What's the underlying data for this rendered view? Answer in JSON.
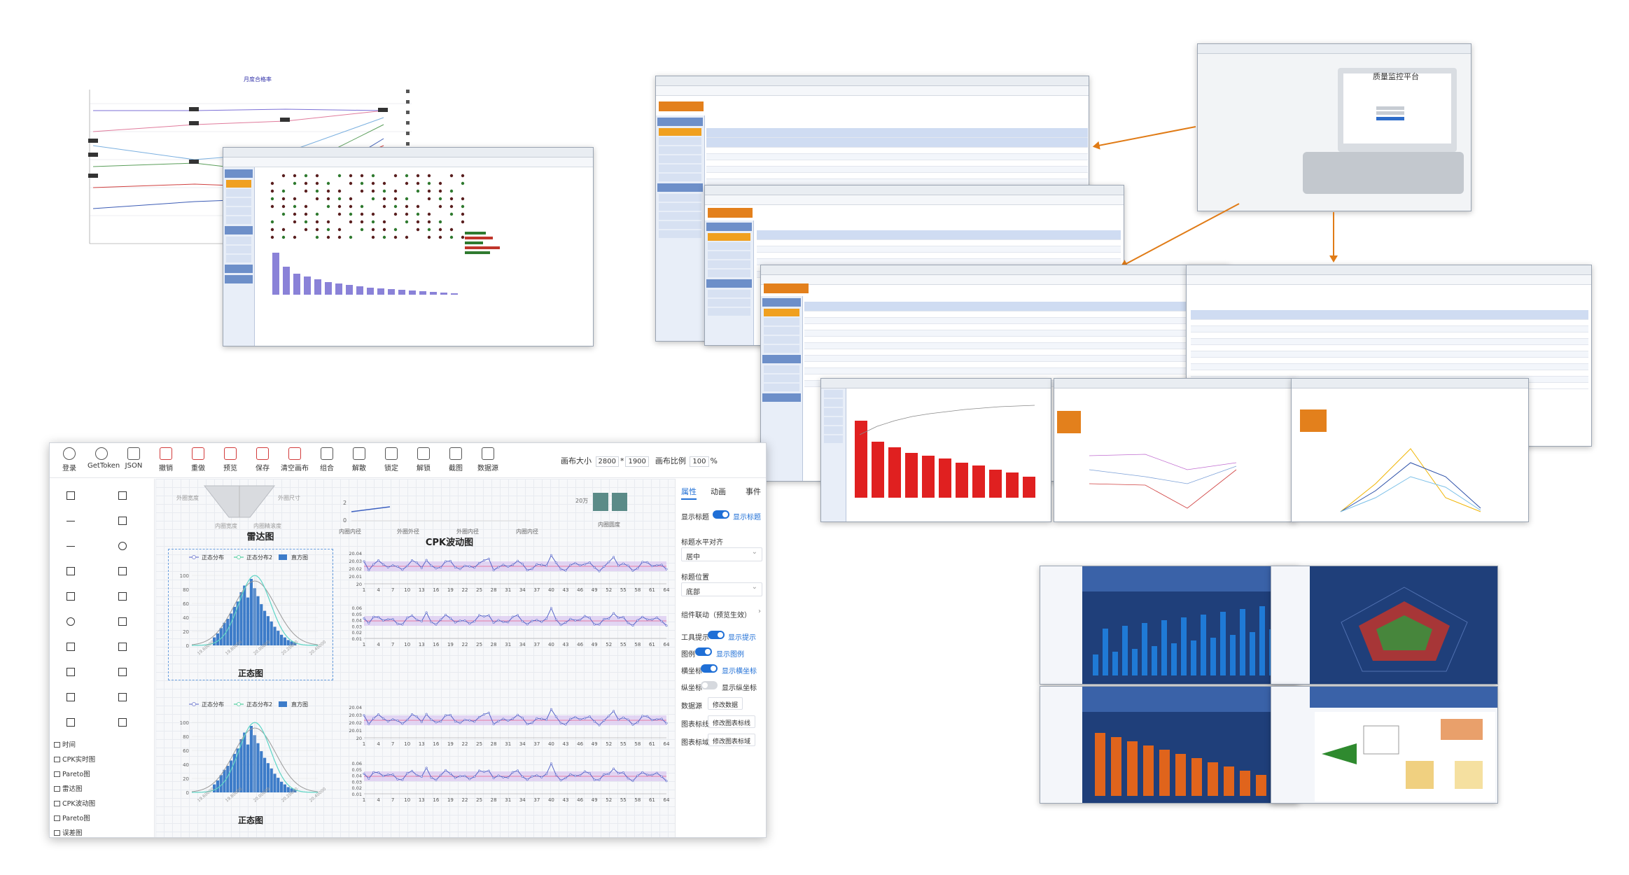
{
  "brand_colors": {
    "accent_orange": "#e07b16",
    "blue_primary": "#1f6fd6",
    "chart_blue": "#3d7cc9"
  },
  "login_screen": {
    "title": "质量监控平台"
  },
  "designer": {
    "toolbar": {
      "buttons": [
        {
          "label": "登录",
          "icon": "user-icon"
        },
        {
          "label": "GetToken",
          "icon": "token-icon"
        },
        {
          "label": "JSON",
          "icon": "json-icon"
        },
        {
          "label": "撤销",
          "icon": "undo-icon"
        },
        {
          "label": "重做",
          "icon": "redo-icon"
        },
        {
          "label": "预览",
          "icon": "preview-icon"
        },
        {
          "label": "保存",
          "icon": "save-icon"
        },
        {
          "label": "清空画布",
          "icon": "clear-icon"
        },
        {
          "label": "组合",
          "icon": "group-icon"
        },
        {
          "label": "解散",
          "icon": "ungroup-icon"
        },
        {
          "label": "锁定",
          "icon": "lock-icon"
        },
        {
          "label": "解锁",
          "icon": "unlock-icon"
        },
        {
          "label": "截图",
          "icon": "screenshot-icon"
        },
        {
          "label": "数据源",
          "icon": "database-icon"
        }
      ],
      "canvas_size_label": "画布大小",
      "canvas_width": "2800",
      "canvas_sep": "*",
      "canvas_height": "1900",
      "canvas_ratio_label": "画布比例",
      "canvas_ratio": "100",
      "canvas_ratio_unit": "%"
    },
    "component_list": [
      "时间",
      "CPK实时图",
      "Pareto图",
      "雷达图",
      "CPK波动图",
      "Pareto图",
      "误差图"
    ],
    "stage": {
      "radar_labels": [
        "外圈宽度",
        "外圈尺寸",
        "内圈宽度",
        "内圈精滚度"
      ],
      "line_labels": [
        "内圈内径",
        "外圈外径",
        "外圈内径",
        "内圈内径"
      ],
      "bar_value_label": "20万",
      "bar_label": "内圈圆度",
      "radar_title": "雷达图",
      "cpk_title": "CPK波动图",
      "normal_title": "正态图",
      "legend": [
        "正态分布",
        "正态分布2",
        "直方图"
      ],
      "line_axis_zero": "0",
      "line_axis_two": "2"
    },
    "properties": {
      "tabs": [
        "属性",
        "动画",
        "事件"
      ],
      "show_title_label": "显示标题",
      "show_title_value": "显示标题",
      "title_align_label": "标题水平对齐",
      "title_align_value": "居中",
      "title_pos_label": "标题位置",
      "title_pos_value": "底部",
      "linkage_label": "组件联动（预览生效）",
      "tooltip_label": "工具提示",
      "tooltip_value": "显示提示",
      "legend_label": "图例",
      "legend_value": "显示图例",
      "xaxis_label": "横坐标",
      "xaxis_value": "显示横坐标",
      "yaxis_label": "纵坐标",
      "yaxis_value": "显示纵坐标",
      "datasource_label": "数据源",
      "datasource_btn": "修改数据",
      "chart_line_label": "图表标线",
      "chart_line_btn": "修改图表标线",
      "chart_area_label": "图表标域",
      "chart_area_btn": "修改图表标域"
    }
  },
  "chart_data": [
    {
      "type": "bar",
      "title": "",
      "categories": [
        "1",
        "2",
        "3",
        "4",
        "5",
        "6",
        "7",
        "8",
        "9",
        "10",
        "11",
        "12",
        "13",
        "14",
        "15",
        "16",
        "17",
        "18",
        "19",
        "20",
        "21",
        "22",
        "23",
        "24",
        "25"
      ],
      "values": [
        12,
        18,
        26,
        34,
        40,
        48,
        58,
        66,
        80,
        90,
        72,
        100,
        86,
        74,
        62,
        52,
        44,
        36,
        28,
        22,
        16,
        12,
        8,
        6,
        4
      ],
      "ylim": [
        0,
        100
      ],
      "yticks": [
        "0",
        "20",
        "40",
        "60",
        "80",
        "100"
      ],
      "xticks": [
        "19.60000",
        "19.80000",
        "20.00000",
        "20.20000",
        "20.40000"
      ],
      "note": "正态图 histogram with normal curves"
    },
    {
      "type": "line",
      "title": "CPK波动图",
      "x": [
        "1",
        "4",
        "7",
        "10",
        "13",
        "16",
        "19",
        "22",
        "25",
        "28",
        "31",
        "34",
        "37",
        "40",
        "43",
        "46",
        "49",
        "52",
        "55",
        "58",
        "61",
        "64"
      ],
      "series": [
        {
          "values": [
            20.025,
            20.02,
            20.028,
            20.024,
            20.03,
            20.022,
            20.026,
            20.035,
            20.02,
            20.024,
            20.028,
            20.022,
            20.03,
            20.026,
            20.032,
            20.024,
            20.028,
            20.022,
            20.026,
            20.03,
            20.024,
            20.027
          ]
        },
        {
          "values": [
            0.03,
            0.025,
            0.035,
            0.02,
            0.028,
            0.032,
            0.022,
            0.03,
            0.026,
            0.034,
            0.024,
            0.03,
            0.028,
            0.022,
            0.032,
            0.026,
            0.03,
            0.024,
            0.034,
            0.028,
            0.022,
            0.03
          ]
        }
      ],
      "yticks_top": [
        "20.04",
        "20.03",
        "20.02",
        "20.01",
        "20"
      ],
      "yticks_bottom": [
        "0.06",
        "0.05",
        "0.04",
        "0.03",
        "0.02",
        "0.01"
      ]
    }
  ]
}
